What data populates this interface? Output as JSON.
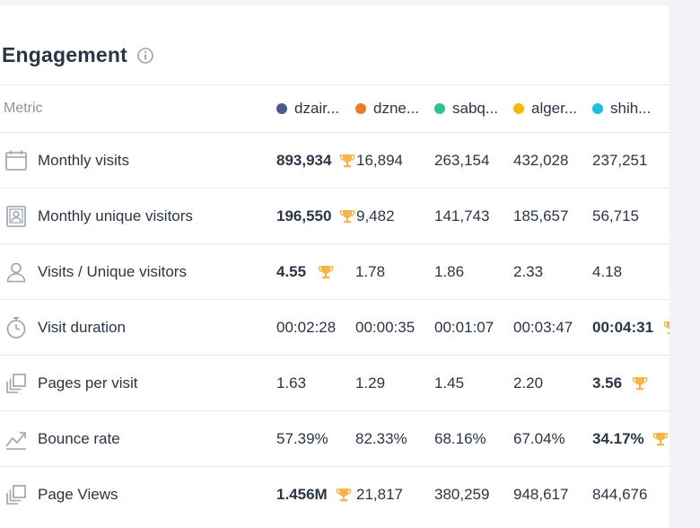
{
  "header": {
    "title": "Engagement"
  },
  "table": {
    "metric_header": "Metric",
    "sites": [
      {
        "label": "dzair...",
        "color": "#4a5a8c"
      },
      {
        "label": "dzne...",
        "color": "#f07a2a"
      },
      {
        "label": "sabq...",
        "color": "#2ec48f"
      },
      {
        "label": "alger...",
        "color": "#f5b80b"
      },
      {
        "label": "shih...",
        "color": "#1ec0de"
      }
    ],
    "rows": [
      {
        "label": "Monthly visits",
        "icon": "calendar-icon",
        "values": [
          "893,934",
          "16,894",
          "263,154",
          "432,028",
          "237,251"
        ],
        "winner": 0
      },
      {
        "label": "Monthly unique visitors",
        "icon": "id-card-icon",
        "values": [
          "196,550",
          "9,482",
          "141,743",
          "185,657",
          "56,715"
        ],
        "winner": 0
      },
      {
        "label": "Visits / Unique visitors",
        "icon": "user-icon",
        "values": [
          "4.55",
          "1.78",
          "1.86",
          "2.33",
          "4.18"
        ],
        "winner": 0
      },
      {
        "label": "Visit duration",
        "icon": "stopwatch-icon",
        "values": [
          "00:02:28",
          "00:00:35",
          "00:01:07",
          "00:03:47",
          "00:04:31"
        ],
        "winner": 4
      },
      {
        "label": "Pages per visit",
        "icon": "pages-icon",
        "values": [
          "1.63",
          "1.29",
          "1.45",
          "2.20",
          "3.56"
        ],
        "winner": 4
      },
      {
        "label": "Bounce rate",
        "icon": "trend-icon",
        "values": [
          "57.39%",
          "82.33%",
          "68.16%",
          "67.04%",
          "34.17%"
        ],
        "winner": 4
      },
      {
        "label": "Page Views",
        "icon": "pages-icon",
        "values": [
          "1.456M",
          "21,817",
          "380,259",
          "948,617",
          "844,676"
        ],
        "winner": 0
      }
    ]
  },
  "colors": {
    "trophy": "#f5b34a",
    "text": "#2a3547",
    "muted": "#8a93a3",
    "icon": "#9aa2af"
  }
}
